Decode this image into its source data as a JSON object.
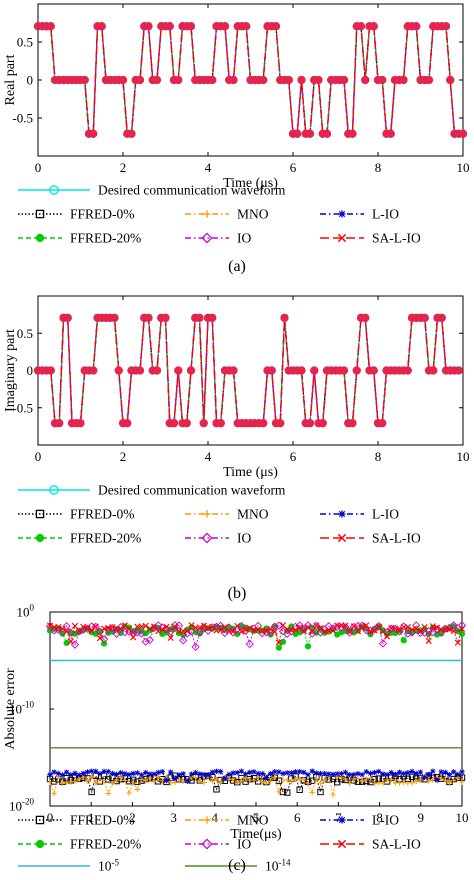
{
  "panels": {
    "a": "(a)",
    "b": "(b)",
    "c": "(c)"
  },
  "chart_data": [
    {
      "type": "line",
      "panel": "(a)",
      "ylabel": "Real part",
      "xlabel": "Time (μs)",
      "xlim": [
        0,
        10
      ],
      "ylim": [
        -1,
        1
      ],
      "xticks": [
        0,
        2,
        4,
        6,
        8,
        10
      ],
      "yticks": [
        -0.5,
        0,
        0.5
      ],
      "ytick_labels": [
        "-0.5",
        "0",
        "0.5"
      ],
      "grid": false,
      "legend_placement": "below",
      "legend": [
        {
          "name": "Desired communication waveform",
          "color": "#00e5e5",
          "dash": "",
          "marker": "circle-open"
        },
        {
          "name": "FFRED-0%",
          "color": "#000000",
          "dash": "1.5,2",
          "marker": "square-open"
        },
        {
          "name": "MNO",
          "color": "#ff9900",
          "dash": "6,3,1.5,3",
          "marker": "plus"
        },
        {
          "name": "L-IO",
          "color": "#0000cc",
          "dash": "6,3,1.5,3",
          "marker": "star"
        },
        {
          "name": "FFRED-20%",
          "color": "#00cc00",
          "dash": "5,3",
          "marker": "circle-filled"
        },
        {
          "name": "IO",
          "color": "#cc00cc",
          "dash": "6,3,1.5,3",
          "marker": "diamond-open"
        },
        {
          "name": "SA-L-IO",
          "color": "#ff0000",
          "dash": "9,4",
          "marker": "x"
        }
      ],
      "sample_period_us": 0.1,
      "values": [
        0.7071,
        0.7071,
        0.7071,
        0.7071,
        0,
        0,
        0,
        0,
        0,
        0,
        0,
        0,
        -0.7071,
        -0.7071,
        0.7071,
        0.7071,
        0,
        0,
        0,
        0,
        0,
        -0.7071,
        -0.7071,
        0,
        0,
        0.7071,
        0.7071,
        0,
        0,
        0.7071,
        0.7071,
        0.7071,
        0,
        0,
        0.7071,
        0.7071,
        0.7071,
        0,
        0,
        0,
        0,
        0,
        0.7071,
        0.7071,
        0.7071,
        0,
        0,
        0.7071,
        0.7071,
        0.7071,
        0,
        0,
        0,
        0,
        0.7071,
        0.7071,
        0.7071,
        0,
        0,
        0,
        -0.7071,
        -0.7071,
        0,
        -0.7071,
        -0.7071,
        0,
        0,
        -0.7071,
        -0.7071,
        0,
        0,
        0,
        0,
        -0.7071,
        -0.7071,
        0.7071,
        0.7071,
        0,
        0.7071,
        0.7071,
        0,
        0,
        -0.7071,
        -0.7071,
        0,
        0,
        0,
        0.7071,
        0.7071,
        0.7071,
        0,
        0,
        0,
        0.7071,
        0.7071,
        0.7071,
        0.7071,
        0,
        -0.7071,
        -0.7071,
        -0.7071
      ]
    },
    {
      "type": "line",
      "panel": "(b)",
      "ylabel": "Imaginary part",
      "xlabel": "Time (μs)",
      "xlim": [
        0,
        10
      ],
      "ylim": [
        -1,
        1
      ],
      "xticks": [
        0,
        2,
        4,
        6,
        8,
        10
      ],
      "yticks": [
        -0.5,
        0,
        0.5
      ],
      "ytick_labels": [
        "-0.5",
        "0",
        "0.5"
      ],
      "grid": false,
      "legend_placement": "below",
      "legend": [
        {
          "name": "Desired communication waveform",
          "color": "#00e5e5",
          "dash": "",
          "marker": "circle-open"
        },
        {
          "name": "FFRED-0%",
          "color": "#000000",
          "dash": "1.5,2",
          "marker": "square-open"
        },
        {
          "name": "MNO",
          "color": "#ff9900",
          "dash": "6,3,1.5,3",
          "marker": "plus"
        },
        {
          "name": "L-IO",
          "color": "#0000cc",
          "dash": "6,3,1.5,3",
          "marker": "star"
        },
        {
          "name": "FFRED-20%",
          "color": "#00cc00",
          "dash": "5,3",
          "marker": "circle-filled"
        },
        {
          "name": "IO",
          "color": "#cc00cc",
          "dash": "6,3,1.5,3",
          "marker": "diamond-open"
        },
        {
          "name": "SA-L-IO",
          "color": "#ff0000",
          "dash": "9,4",
          "marker": "x"
        }
      ],
      "sample_period_us": 0.1,
      "values": [
        0,
        0,
        0,
        0,
        -0.7071,
        -0.7071,
        0.7071,
        0.7071,
        -0.7071,
        -0.7071,
        -0.7071,
        0,
        0,
        0,
        0.7071,
        0.7071,
        0.7071,
        0.7071,
        0.7071,
        0,
        -0.7071,
        -0.7071,
        0,
        0,
        0,
        0.7071,
        0.7071,
        0,
        0,
        0.7071,
        0.7071,
        -0.7071,
        -0.7071,
        0,
        -0.7071,
        -0.7071,
        0,
        0.7071,
        0.7071,
        -0.7071,
        0.7071,
        0.7071,
        -0.7071,
        -0.7071,
        0,
        0,
        0,
        -0.7071,
        -0.7071,
        -0.7071,
        -0.7071,
        -0.7071,
        -0.7071,
        -0.7071,
        0,
        0,
        -0.7071,
        -0.7071,
        0.7071,
        0,
        0,
        0,
        0,
        -0.7071,
        -0.7071,
        0,
        -0.7071,
        -0.7071,
        0,
        0,
        0,
        0,
        0,
        -0.7071,
        -0.7071,
        0,
        0.7071,
        0.7071,
        0,
        0,
        -0.7071,
        -0.7071,
        0,
        0,
        0,
        0,
        0,
        0,
        0.7071,
        0.7071,
        0.7071,
        0.7071,
        0,
        0,
        0.7071,
        0.7071,
        0,
        0,
        0,
        0
      ]
    },
    {
      "type": "scatter",
      "panel": "(c)",
      "ylabel": "Absolute error",
      "xlabel": "Time(μs)",
      "xlim": [
        0,
        10
      ],
      "ylog": true,
      "ylim_log10": [
        -20,
        0
      ],
      "xticks": [
        0,
        1,
        2,
        3,
        4,
        5,
        6,
        7,
        8,
        9,
        10
      ],
      "yticks_log10": [
        0,
        -10,
        -20
      ],
      "ytick_labels": [
        {
          "base": "10",
          "exp": "0"
        },
        {
          "base": "10",
          "exp": "-10"
        },
        {
          "base": "10",
          "exp": "-20"
        }
      ],
      "grid": false,
      "legend_placement": "below",
      "legend": [
        {
          "name": "FFRED-0%",
          "color": "#000000",
          "dash": "1.5,2",
          "marker": "square-open"
        },
        {
          "name": "MNO",
          "color": "#ff9900",
          "dash": "6,3,1.5,3",
          "marker": "plus"
        },
        {
          "name": "L-IO",
          "color": "#0000cc",
          "dash": "6,3,1.5,3",
          "marker": "star"
        },
        {
          "name": "FFRED-20%",
          "color": "#00cc00",
          "dash": "5,3",
          "marker": "circle-filled"
        },
        {
          "name": "IO",
          "color": "#cc00cc",
          "dash": "6,3,1.5,3",
          "marker": "diamond-open"
        },
        {
          "name": "SA-L-IO",
          "color": "#ff0000",
          "dash": "9,4",
          "marker": "x"
        },
        {
          "name": "10",
          "sup": "-5",
          "color": "#33bbdd",
          "dash": "",
          "marker": "none"
        },
        {
          "name": "10",
          "sup": "-14",
          "color": "#558822",
          "dash": "",
          "marker": "none"
        }
      ],
      "threshold_lines_log10": [
        {
          "value": -5,
          "color": "#33bbdd"
        },
        {
          "value": -14,
          "color": "#558822"
        }
      ],
      "error_bands_log10": [
        {
          "series": "FFRED-0%",
          "level": -17.2,
          "spread": 0.7,
          "color": "#000000",
          "marker": "square-open"
        },
        {
          "series": "MNO",
          "level": -17.3,
          "spread": 0.8,
          "color": "#ff9900",
          "marker": "plus"
        },
        {
          "series": "L-IO",
          "level": -16.6,
          "spread": 0.4,
          "color": "#0000cc",
          "marker": "star"
        },
        {
          "series": "FFRED-20%",
          "level": -1.9,
          "spread": 0.9,
          "color": "#00cc00",
          "marker": "circle-filled"
        },
        {
          "series": "IO",
          "level": -1.8,
          "spread": 0.9,
          "color": "#cc00cc",
          "marker": "diamond-open"
        },
        {
          "series": "SA-L-IO",
          "level": -1.7,
          "spread": 0.7,
          "color": "#ff0000",
          "marker": "x"
        }
      ],
      "samples_per_series": 100
    }
  ]
}
